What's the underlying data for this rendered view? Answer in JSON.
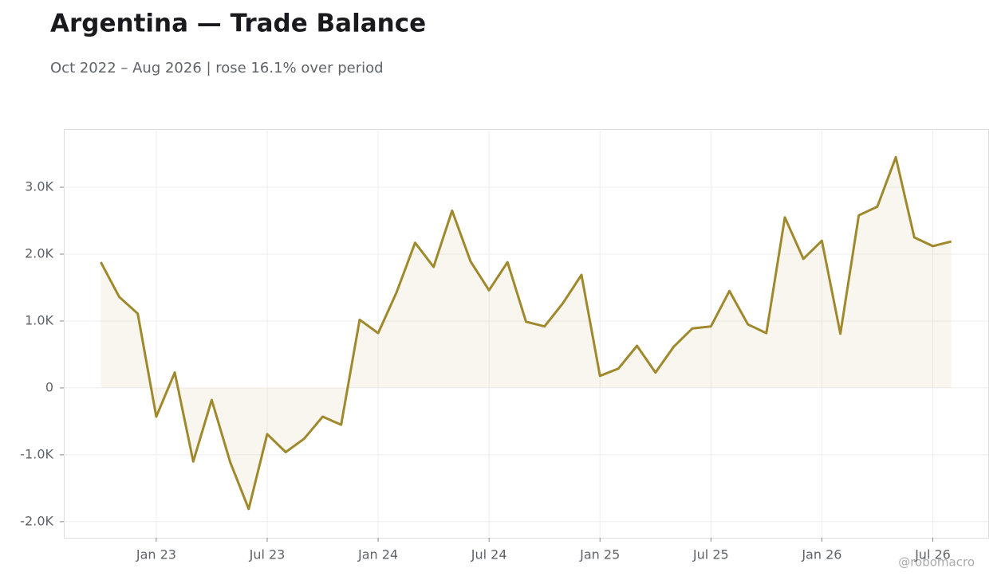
{
  "chart_data": {
    "type": "line",
    "title": "Argentina — Trade Balance",
    "subtitle": "Oct 2022 – Aug 2026 | rose 16.1% over period",
    "source": "@robomacro",
    "color": "#a0892c",
    "area": true,
    "grid": true,
    "x": [
      "2022-10",
      "2022-11",
      "2022-12",
      "2023-01",
      "2023-02",
      "2023-03",
      "2023-04",
      "2023-05",
      "2023-06",
      "2023-07",
      "2023-08",
      "2023-09",
      "2023-10",
      "2023-11",
      "2023-12",
      "2024-01",
      "2024-02",
      "2024-03",
      "2024-04",
      "2024-05",
      "2024-06",
      "2024-07",
      "2024-08",
      "2024-09",
      "2024-10",
      "2024-11",
      "2024-12",
      "2025-01",
      "2025-02",
      "2025-03",
      "2025-04",
      "2025-05",
      "2025-06",
      "2025-07",
      "2025-08",
      "2025-09",
      "2025-10",
      "2025-11",
      "2025-12",
      "2026-01",
      "2026-02",
      "2026-03",
      "2026-04",
      "2026-05",
      "2026-06",
      "2026-07",
      "2026-08"
    ],
    "values": [
      1880,
      1360,
      1110,
      -430,
      230,
      -1100,
      -180,
      -1110,
      -1810,
      -690,
      -960,
      -760,
      -430,
      -550,
      1020,
      820,
      1430,
      2170,
      1810,
      2650,
      1890,
      1460,
      1880,
      990,
      920,
      1270,
      1690,
      180,
      290,
      630,
      230,
      620,
      890,
      920,
      1450,
      950,
      820,
      2550,
      1930,
      2200,
      810,
      2580,
      2710,
      3450,
      2250,
      2120,
      2190
    ],
    "xlim": [
      "2022-08",
      "2026-10"
    ],
    "xticks": [
      {
        "value": "2023-01",
        "label": "Jan 23"
      },
      {
        "value": "2023-07",
        "label": "Jul 23"
      },
      {
        "value": "2024-01",
        "label": "Jan 24"
      },
      {
        "value": "2024-07",
        "label": "Jul 24"
      },
      {
        "value": "2025-01",
        "label": "Jan 25"
      },
      {
        "value": "2025-07",
        "label": "Jul 25"
      },
      {
        "value": "2026-01",
        "label": "Jan 26"
      },
      {
        "value": "2026-07",
        "label": "Jul 26"
      }
    ],
    "ylim": [
      -2240,
      3870
    ],
    "yticks": [
      {
        "value": -2000,
        "label": "-2.0K"
      },
      {
        "value": -1000,
        "label": "-1.0K"
      },
      0,
      {
        "value": 1000,
        "label": "1.0K"
      },
      {
        "value": 2000,
        "label": "2.0K"
      },
      {
        "value": 3000,
        "label": "3.0K"
      }
    ]
  }
}
